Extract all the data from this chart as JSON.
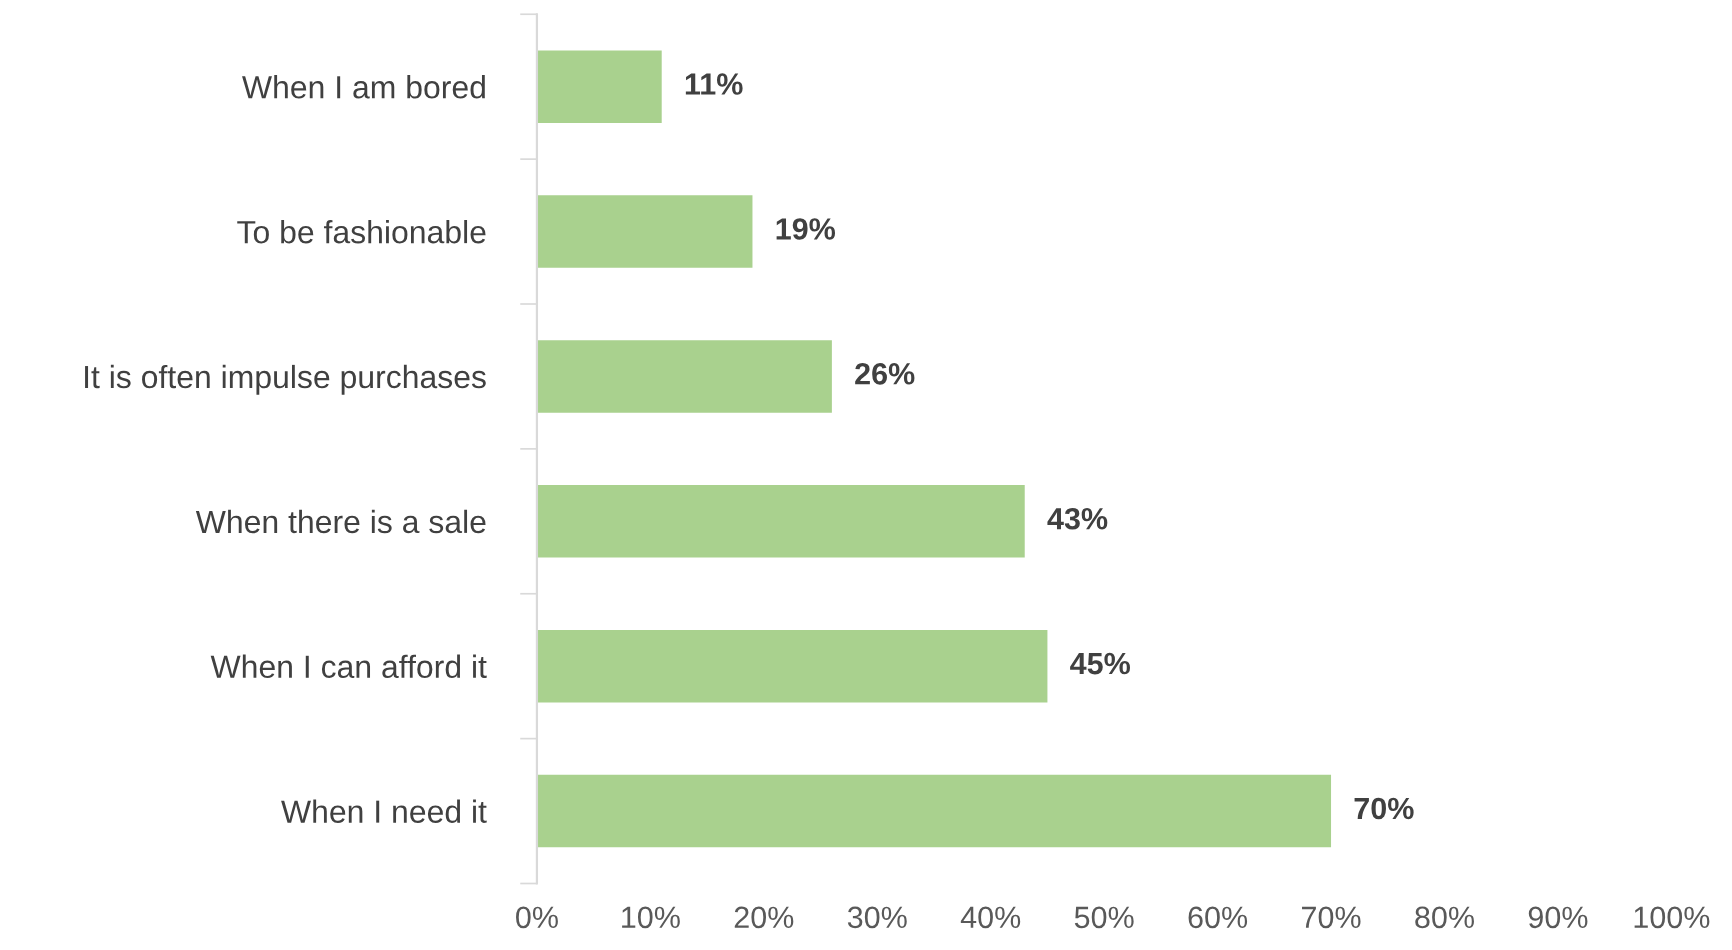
{
  "chart_data": {
    "type": "bar",
    "orientation": "horizontal",
    "categories": [
      "When I am bored",
      "To be fashionable",
      "It is often impulse purchases",
      "When there is a sale",
      "When I can afford it",
      "When I need it"
    ],
    "values": [
      11,
      19,
      26,
      43,
      45,
      70
    ],
    "value_labels": [
      "11%",
      "19%",
      "26%",
      "43%",
      "45%",
      "70%"
    ],
    "color": "#a9d18e",
    "xlim": [
      0,
      100
    ],
    "xticks": [
      {
        "value": 0,
        "label": "0%"
      },
      {
        "value": 10,
        "label": "10%"
      },
      {
        "value": 20,
        "label": "20%"
      },
      {
        "value": 30,
        "label": "30%"
      },
      {
        "value": 40,
        "label": "40%"
      },
      {
        "value": 50,
        "label": "50%"
      },
      {
        "value": 60,
        "label": "60%"
      },
      {
        "value": 70,
        "label": "70%"
      },
      {
        "value": 80,
        "label": "80%"
      },
      {
        "value": 90,
        "label": "90%"
      },
      {
        "value": 100,
        "label": "100%"
      }
    ],
    "grid": false,
    "legend": false
  }
}
